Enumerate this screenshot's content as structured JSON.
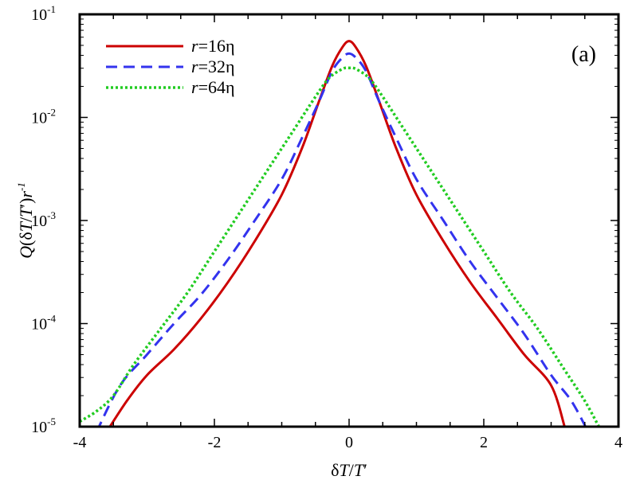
{
  "chart_data": {
    "type": "line",
    "title": "",
    "panel_label": "(a)",
    "xlabel": "δT/T′",
    "xlabel_parts": {
      "delta": "δ",
      "T1": "T",
      "slash": "/",
      "T2": "T",
      "prime": "′"
    },
    "ylabel": "Q(δT/T′)r⁻¹",
    "ylabel_parts": {
      "Q": "Q",
      "open": "(δ",
      "T1": "T",
      "slash": "/",
      "T2": "T",
      "prime_close": "′)",
      "r": "r",
      "exp": "-1"
    },
    "xlim": [
      -4,
      4
    ],
    "ylim_log10": [
      -5,
      -1
    ],
    "yscale": "log",
    "x_ticks": [
      {
        "value": -4,
        "label": "-4"
      },
      {
        "value": -2,
        "label": "-2"
      },
      {
        "value": 0,
        "label": "0"
      },
      {
        "value": 2,
        "label": "2"
      },
      {
        "value": 4,
        "label": "4"
      }
    ],
    "y_ticks": [
      {
        "exp": -5,
        "base": "10",
        "sup": "-5"
      },
      {
        "exp": -4,
        "base": "10",
        "sup": "-4"
      },
      {
        "exp": -3,
        "base": "10",
        "sup": "-3"
      },
      {
        "exp": -2,
        "base": "10",
        "sup": "-2"
      },
      {
        "exp": -1,
        "base": "10",
        "sup": "-1"
      }
    ],
    "legend_position": "top-left",
    "series": [
      {
        "name": "r=16η",
        "label_r": "r",
        "label_rest": "=16",
        "label_eta": "η",
        "color": "#cc0000",
        "style": "solid",
        "x": [
          -3.6,
          -3.3,
          -3.0,
          -2.6,
          -2.2,
          -1.8,
          -1.4,
          -1.0,
          -0.7,
          -0.45,
          -0.25,
          -0.1,
          0.0,
          0.1,
          0.25,
          0.45,
          0.7,
          1.0,
          1.4,
          1.8,
          2.2,
          2.6,
          3.0,
          3.2
        ],
        "log10y": [
          -5.05,
          -4.75,
          -4.5,
          -4.25,
          -3.95,
          -3.6,
          -3.2,
          -2.75,
          -2.3,
          -1.85,
          -1.5,
          -1.32,
          -1.26,
          -1.32,
          -1.5,
          -1.85,
          -2.3,
          -2.75,
          -3.2,
          -3.6,
          -3.95,
          -4.3,
          -4.6,
          -5.0
        ]
      },
      {
        "name": "r=32η",
        "label_r": "r",
        "label_rest": "=32",
        "label_eta": "η",
        "color": "#3333ee",
        "style": "dashed",
        "x": [
          -3.75,
          -3.4,
          -3.0,
          -2.6,
          -2.2,
          -1.8,
          -1.4,
          -1.0,
          -0.7,
          -0.45,
          -0.25,
          -0.1,
          0.0,
          0.1,
          0.25,
          0.45,
          0.7,
          1.0,
          1.4,
          1.8,
          2.2,
          2.6,
          3.0,
          3.3,
          3.55
        ],
        "log10y": [
          -5.05,
          -4.6,
          -4.3,
          -4.0,
          -3.72,
          -3.38,
          -3.0,
          -2.6,
          -2.2,
          -1.85,
          -1.55,
          -1.42,
          -1.38,
          -1.42,
          -1.55,
          -1.85,
          -2.2,
          -2.6,
          -3.0,
          -3.4,
          -3.75,
          -4.1,
          -4.5,
          -4.75,
          -5.05
        ]
      },
      {
        "name": "r=64η",
        "label_r": "r",
        "label_rest": "=64",
        "label_eta": "η",
        "color": "#22cc22",
        "style": "dotted",
        "x": [
          -4.0,
          -3.75,
          -3.5,
          -3.2,
          -2.8,
          -2.4,
          -2.0,
          -1.6,
          -1.2,
          -0.8,
          -0.5,
          -0.3,
          -0.1,
          0.0,
          0.1,
          0.3,
          0.5,
          0.8,
          1.2,
          1.6,
          2.0,
          2.4,
          2.8,
          3.2,
          3.5,
          3.75
        ],
        "log10y": [
          -4.95,
          -4.85,
          -4.7,
          -4.4,
          -4.05,
          -3.7,
          -3.3,
          -2.9,
          -2.5,
          -2.1,
          -1.8,
          -1.62,
          -1.53,
          -1.52,
          -1.53,
          -1.62,
          -1.8,
          -2.1,
          -2.5,
          -2.9,
          -3.3,
          -3.7,
          -4.05,
          -4.45,
          -4.75,
          -5.05
        ]
      }
    ]
  }
}
